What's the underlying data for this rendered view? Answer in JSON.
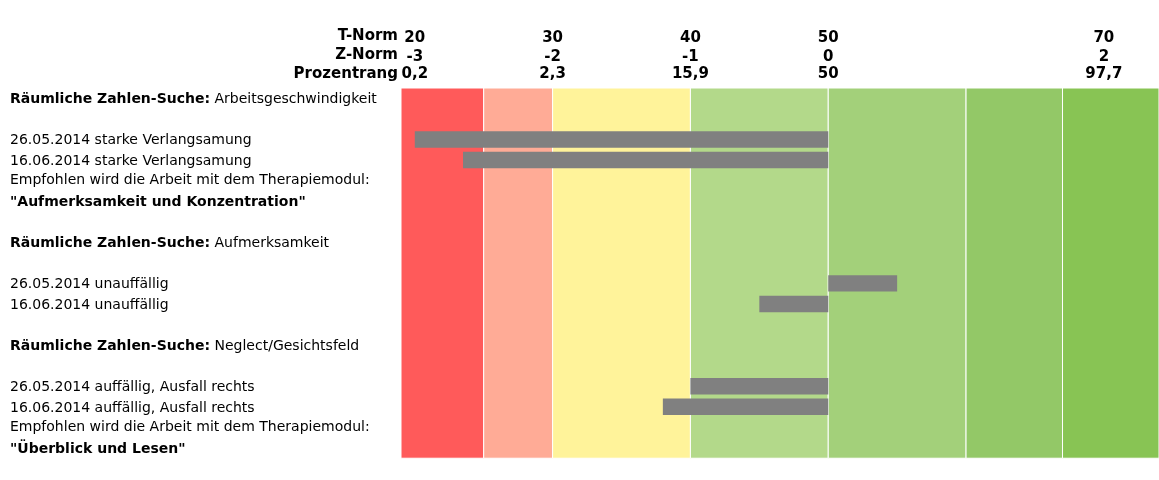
{
  "chart_data": {
    "type": "bar",
    "orientation": "horizontal",
    "xlabel": "T-Norm",
    "x2label": "Z-Norm",
    "annotations": [
      "Prozentrang",
      "0,2",
      "2,3",
      "15,9",
      "50",
      "97,7"
    ],
    "categories": [
      "Räumliche Zahlen-Suche: Arbeitsgeschwindigkeit",
      null,
      "26.05.2014 starke Verlangsamung",
      "16.06.2014 starke Verlangsamung",
      null,
      "Empfohlen wird die Arbeit mit dem Therapiemodul:\n\"Aufmerksamkeit und Konzentration\"",
      null,
      "Räumliche Zahlen-Suche: Aufmerksamkeit",
      null,
      "26.05.2014 unauffällig",
      "16.06.2014 unauffällig",
      null,
      "Räumliche Zahlen-Suche: Neglect/Gesichtsfeld",
      null,
      "26.05.2014 auffällig, Ausfall rechts",
      "16.06.2014 auffällig, Ausfall rechts",
      null,
      "Empfohlen wird die Arbeit mit dem Therapiemodul:\n\"Überblick und Lesen\""
    ],
    "values": [
      null,
      null,
      30,
      26.5,
      null,
      null,
      null,
      null,
      null,
      5,
      5,
      null,
      null,
      null,
      10,
      12,
      null,
      null
    ],
    "base": [
      null,
      null,
      20,
      23.5,
      null,
      null,
      null,
      null,
      null,
      50,
      45,
      null,
      null,
      null,
      40,
      38,
      null,
      null
    ],
    "color": "#808080",
    "xlim": [
      19,
      74
    ],
    "xticks": [
      20,
      30,
      40,
      50,
      70
    ],
    "x2lim": [
      -3.1,
      2.4
    ],
    "x2ticks": [
      -3,
      -2,
      -1,
      0,
      2
    ],
    "bands": [
      {
        "axis": "x",
        "from": 19,
        "to": 25,
        "color": "#ff5a5a"
      },
      {
        "axis": "x",
        "from": 25,
        "to": 30,
        "color": "#ffab96"
      },
      {
        "axis": "x",
        "from": 30,
        "to": 40,
        "color": "#fff39a"
      },
      {
        "axis": "x",
        "from": 40,
        "to": 50,
        "color": "#b3d98a"
      },
      {
        "axis": "x",
        "from": 50,
        "to": 60,
        "color": "#a3d07a"
      },
      {
        "axis": "x",
        "from": 60,
        "to": 67,
        "color": "#93c867"
      },
      {
        "axis": "x",
        "from": 67,
        "to": 74,
        "color": "#88c454"
      }
    ]
  }
}
